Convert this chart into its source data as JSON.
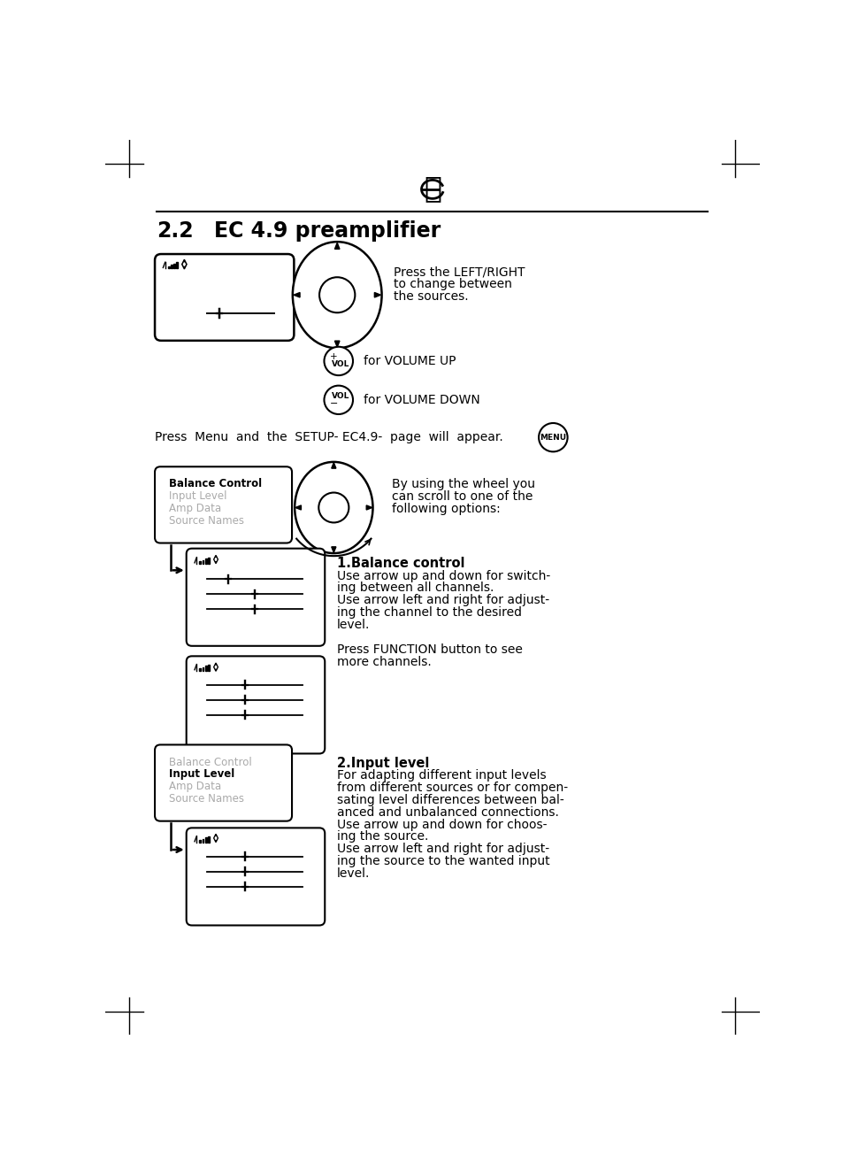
{
  "bg_color": "#ffffff",
  "text_color": "#000000",
  "gray_color": "#aaaaaa",
  "title_num": "2.2",
  "title_text": "EC 4.9 preamplifier",
  "press_left_right": [
    "Press the LEFT/RIGHT",
    "to change between",
    "the sources."
  ],
  "vol_up_label": "for VOLUME UP",
  "vol_dn_label": "for VOLUME DOWN",
  "press_menu_line": "Press  Menu  and  the  SETUP- EC4.9-  page  will  appear.",
  "by_using": [
    "By using the wheel you",
    "can scroll to one of the",
    "following options:"
  ],
  "menu_items_1": [
    "Balance Control",
    "Input Level",
    "Amp Data",
    "Source Names"
  ],
  "menu_bold_1": 0,
  "menu_items_2": [
    "Balance Control",
    "Input Level",
    "Amp Data",
    "Source Names"
  ],
  "menu_bold_2": 1,
  "balance_title": "1.Balance control",
  "balance_text": [
    "Use arrow up and down for switch-",
    "ing between all channels.",
    "Use arrow left and right for adjust-",
    "ing the channel to the desired",
    "level.",
    "",
    "Press FUNCTION button to see",
    "more channels."
  ],
  "input_title": "2.Input level",
  "input_text": [
    "For adapting different input levels",
    "from different sources or for compen-",
    "sating level differences between bal-",
    "anced and unbalanced connections.",
    "Use arrow up and down for choos-",
    "ing the source.",
    "Use arrow left and right for adjust-",
    "ing the source to the wanted input",
    "level."
  ]
}
